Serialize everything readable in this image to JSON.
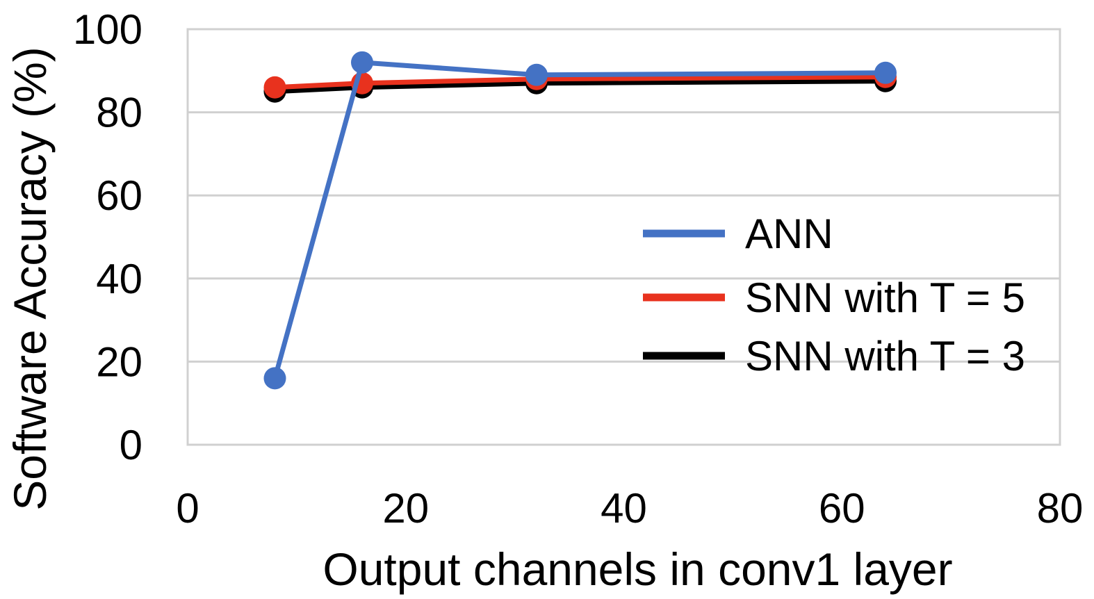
{
  "chart_data": {
    "type": "line",
    "title": "",
    "xlabel": "Output channels in conv1 layer",
    "ylabel": "Software Accuracy (%)",
    "xlim": [
      0,
      80
    ],
    "ylim": [
      0,
      100
    ],
    "xticks": [
      "0",
      "20",
      "40",
      "60",
      "80"
    ],
    "yticks": [
      "0",
      "20",
      "40",
      "60",
      "80",
      "100"
    ],
    "grid": "horizontal",
    "legend_position": "right",
    "series": [
      {
        "name": "ANN",
        "color": "#4472C4",
        "x": [
          8,
          16,
          32,
          64
        ],
        "y": [
          16,
          92,
          89,
          89.5
        ]
      },
      {
        "name": "SNN with T = 5",
        "color": "#E8321E",
        "x": [
          8,
          16,
          32,
          64
        ],
        "y": [
          86,
          87,
          88,
          88.5
        ]
      },
      {
        "name": "SNN with T = 3",
        "color": "#000000",
        "x": [
          8,
          16,
          32,
          64
        ],
        "y": [
          85,
          86,
          87,
          87.5
        ]
      }
    ]
  }
}
